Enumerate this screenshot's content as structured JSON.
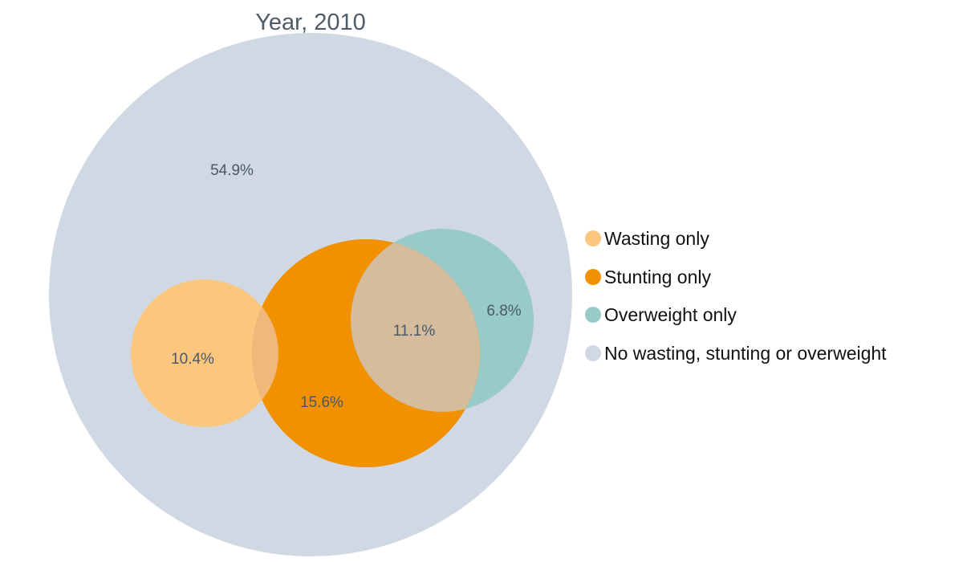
{
  "chart_data": {
    "type": "venn",
    "title": "Year, 2010",
    "regions": [
      {
        "name": "No wasting, stunting or overweight",
        "label": "54.9%",
        "value": 54.9
      },
      {
        "name": "Wasting only",
        "label": "10.4%",
        "value": 10.4
      },
      {
        "name": "Stunting only",
        "label": "15.6%",
        "value": 15.6
      },
      {
        "name": "Stunting and overweight",
        "label": "11.1%",
        "value": 11.1
      },
      {
        "name": "Overweight only",
        "label": "6.8%",
        "value": 6.8
      }
    ],
    "legend": {
      "placement": "right",
      "items": [
        {
          "label": "Wasting only",
          "color": "#fbc77f"
        },
        {
          "label": "Stunting only",
          "color": "#f19100"
        },
        {
          "label": "Overweight only",
          "color": "#98cbc8"
        },
        {
          "label": "No wasting, stunting or overweight",
          "color": "#cfd8e3"
        }
      ]
    },
    "colors": {
      "none": "#cfd8e3",
      "wasting": "#fbc77f",
      "stunting": "#f19100",
      "overweight": "#98cbc8",
      "stunting_overweight_overlap": "#d4bc9c",
      "wasting_stunting_overlap": "#f0b87a"
    }
  }
}
